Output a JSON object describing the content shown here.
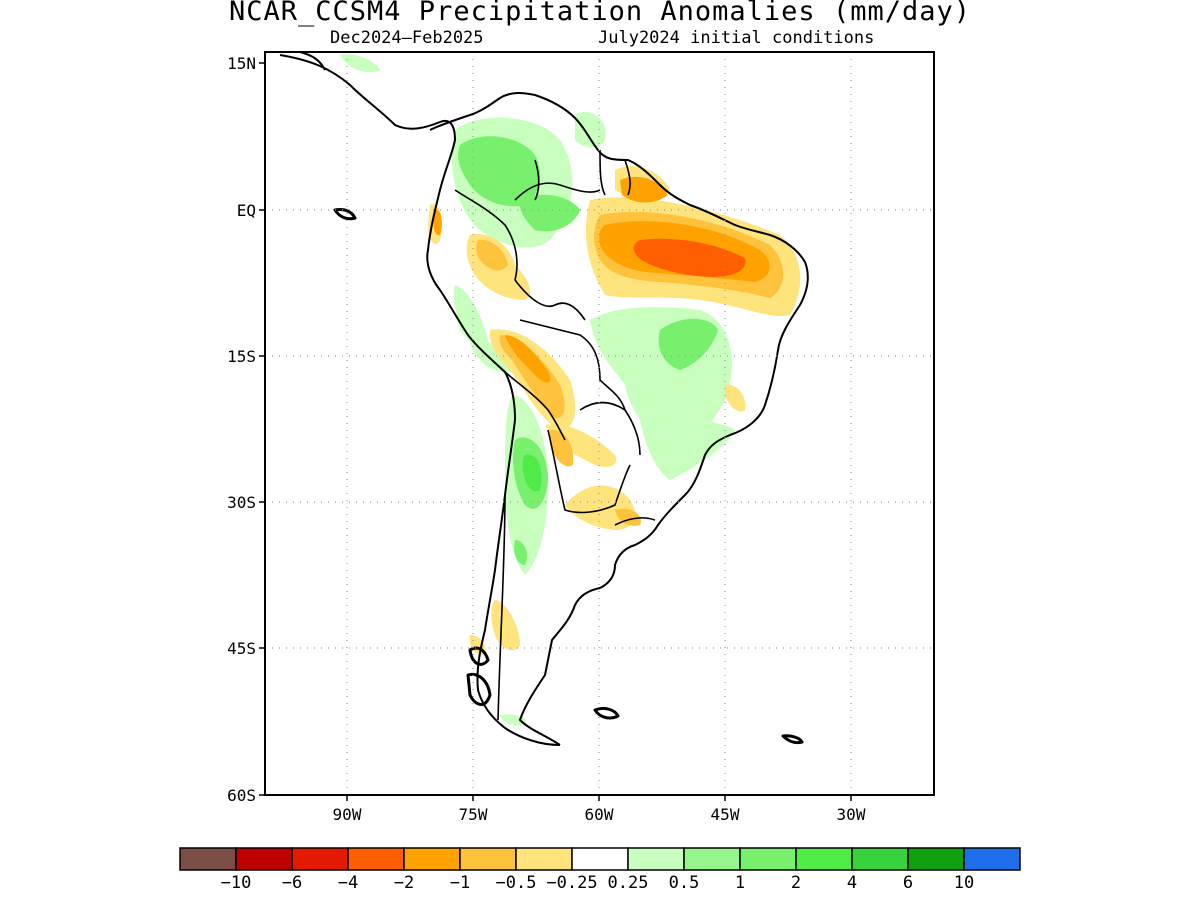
{
  "header": {
    "title": "NCAR_CCSM4 Precipitation Anomalies (mm/day)",
    "period": "Dec2024—Feb2025",
    "initial_conditions": "July2024 initial conditions"
  },
  "map": {
    "region": "South America",
    "lat_range": [
      -60,
      15
    ],
    "lon_range": [
      -100,
      -20
    ],
    "lat_ticks": [
      {
        "value": 15,
        "label": "15N"
      },
      {
        "value": 0,
        "label": "EQ"
      },
      {
        "value": -15,
        "label": "15S"
      },
      {
        "value": -30,
        "label": "30S"
      },
      {
        "value": -45,
        "label": "45S"
      },
      {
        "value": -60,
        "label": "60S"
      }
    ],
    "lon_ticks": [
      {
        "value": -90,
        "label": "90W"
      },
      {
        "value": -75,
        "label": "75W"
      },
      {
        "value": -60,
        "label": "60W"
      },
      {
        "value": -45,
        "label": "45W"
      },
      {
        "value": -30,
        "label": "30W"
      }
    ],
    "grid": "dotted"
  },
  "colorbar": {
    "colors": [
      "#7b4e45",
      "#be0000",
      "#e41a00",
      "#ff5f00",
      "#ffa200",
      "#ffc23c",
      "#ffe37c",
      "#ffffff",
      "#c8ffbe",
      "#96f58c",
      "#78f06e",
      "#50eb46",
      "#37d23c",
      "#0fa00f",
      "#1e6eeb"
    ],
    "labels": [
      "−10",
      "−6",
      "−4",
      "−2",
      "−1",
      "−0.5",
      "−0.25",
      "0.25",
      "0.5",
      "1",
      "2",
      "4",
      "6",
      "10"
    ]
  }
}
